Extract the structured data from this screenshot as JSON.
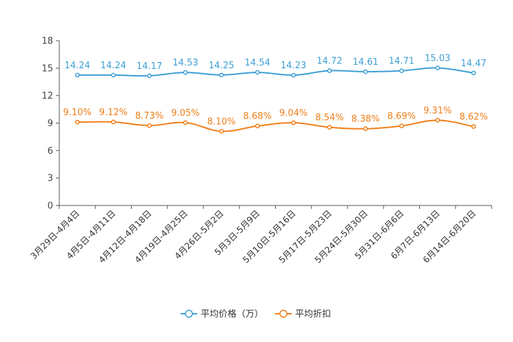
{
  "chart_data": {
    "type": "line",
    "title": "",
    "xlabel": "",
    "ylabel": "",
    "ylim": [
      0,
      18
    ],
    "yticks": [
      0,
      3,
      6,
      9,
      12,
      15,
      18
    ],
    "categories": [
      "3月29日-4月4日",
      "4月5日-4月11日",
      "4月12日-4月18日",
      "4月19日-4月25日",
      "4月26日-5月2日",
      "5月3日-5月9日",
      "5月10日-5月16日",
      "5月17日-5月23日",
      "5月24日-5月30日",
      "5月31日-6月6日",
      "6月7日-6月13日",
      "6月14日-6月20日"
    ],
    "series": [
      {
        "name": "平均价格（万）",
        "color": "#3d9fd3",
        "values": [
          14.24,
          14.24,
          14.17,
          14.53,
          14.25,
          14.54,
          14.23,
          14.72,
          14.61,
          14.71,
          15.03,
          14.47
        ],
        "labels": [
          "14.24",
          "14.24",
          "14.17",
          "14.53",
          "14.25",
          "14.54",
          "14.23",
          "14.72",
          "14.61",
          "14.71",
          "15.03",
          "14.47"
        ]
      },
      {
        "name": "平均折扣",
        "color": "#f07f19",
        "values": [
          9.1,
          9.12,
          8.73,
          9.05,
          8.1,
          8.68,
          9.04,
          8.54,
          8.38,
          8.69,
          9.31,
          8.62
        ],
        "labels": [
          "9.10%",
          "9.12%",
          "8.73%",
          "9.05%",
          "8.10%",
          "8.68%",
          "9.04%",
          "8.54%",
          "8.38%",
          "8.69%",
          "9.31%",
          "8.62%"
        ]
      }
    ],
    "legend": {
      "position": "bottom"
    }
  }
}
